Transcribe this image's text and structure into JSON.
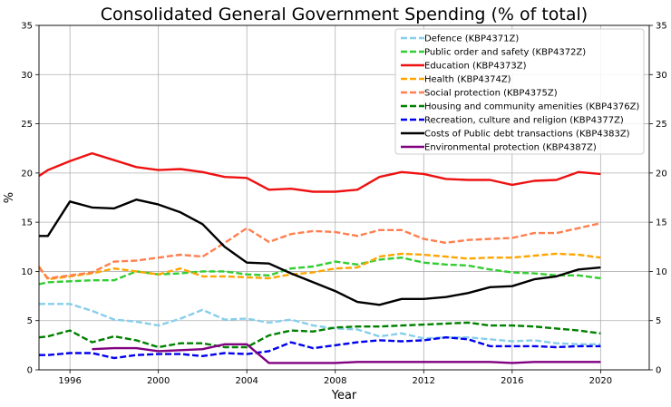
{
  "chart_data": {
    "type": "line",
    "title": "Consolidated General Government Spending (% of total)",
    "xlabel": "Year",
    "ylabel": "%",
    "xlim": [
      1994.6,
      2022.2
    ],
    "ylim": [
      0,
      35
    ],
    "xticks": [
      1996,
      2000,
      2004,
      2008,
      2012,
      2016,
      2020
    ],
    "yticks": [
      0,
      5,
      10,
      15,
      20,
      25,
      30,
      35
    ],
    "grid": true,
    "legend_position": "upper right",
    "series": [
      {
        "name": "Defence (KBP4371Z)",
        "color": "#87ceeb",
        "dash": "dashed",
        "x": [
          1994.6,
          1995,
          1996,
          1997,
          1998,
          1999,
          2000,
          2001,
          2002,
          2003,
          2004,
          2005,
          2006,
          2007,
          2008,
          2009,
          2010,
          2011,
          2012,
          2013,
          2014,
          2015,
          2016,
          2017,
          2018,
          2019,
          2020
        ],
        "y": [
          6.7,
          6.7,
          6.7,
          6.0,
          5.1,
          4.9,
          4.5,
          5.2,
          6.1,
          5.1,
          5.2,
          4.8,
          5.1,
          4.5,
          4.2,
          4.1,
          3.4,
          3.7,
          3.2,
          3.3,
          3.3,
          3.1,
          2.9,
          3.0,
          2.7,
          2.6,
          2.6
        ]
      },
      {
        "name": "Public order and safety (KBP4372Z)",
        "color": "#32cd32",
        "dash": "dashed",
        "x": [
          1994.6,
          1995,
          1996,
          1997,
          1998,
          1999,
          2000,
          2001,
          2002,
          2003,
          2004,
          2005,
          2006,
          2007,
          2008,
          2009,
          2010,
          2011,
          2012,
          2013,
          2014,
          2015,
          2016,
          2017,
          2018,
          2019,
          2020
        ],
        "y": [
          8.7,
          8.9,
          9.0,
          9.1,
          9.1,
          10.0,
          9.7,
          9.8,
          10.0,
          10.0,
          9.7,
          9.6,
          10.3,
          10.5,
          11.0,
          10.7,
          11.2,
          11.4,
          10.9,
          10.7,
          10.6,
          10.2,
          9.9,
          9.8,
          9.6,
          9.6,
          9.3
        ]
      },
      {
        "name": "Education (KBP4373Z)",
        "color": "#ee1111",
        "dash": "solid",
        "x": [
          1994.6,
          1995,
          1996,
          1997,
          1998,
          1999,
          2000,
          2001,
          2002,
          2003,
          2004,
          2005,
          2006,
          2007,
          2008,
          2009,
          2010,
          2011,
          2012,
          2013,
          2014,
          2015,
          2016,
          2017,
          2018,
          2019,
          2020
        ],
        "y": [
          19.7,
          20.3,
          21.2,
          22.0,
          21.3,
          20.6,
          20.3,
          20.4,
          20.1,
          19.6,
          19.5,
          18.3,
          18.4,
          18.1,
          18.1,
          18.3,
          19.6,
          20.1,
          19.9,
          19.4,
          19.3,
          19.3,
          18.8,
          19.2,
          19.3,
          20.1,
          19.9
        ]
      },
      {
        "name": "Health (KBP4374Z)",
        "color": "#ffa500",
        "dash": "dashed",
        "x": [
          1994.6,
          1995,
          1996,
          1997,
          1998,
          1999,
          2000,
          2001,
          2002,
          2003,
          2004,
          2005,
          2006,
          2007,
          2008,
          2009,
          2010,
          2011,
          2012,
          2013,
          2014,
          2015,
          2016,
          2017,
          2018,
          2019,
          2020
        ],
        "y": [
          10.5,
          9.2,
          9.5,
          9.8,
          10.3,
          10.0,
          9.7,
          10.3,
          9.5,
          9.5,
          9.4,
          9.3,
          9.7,
          9.9,
          10.3,
          10.4,
          11.5,
          11.8,
          11.7,
          11.5,
          11.3,
          11.4,
          11.4,
          11.6,
          11.8,
          11.7,
          11.4
        ]
      },
      {
        "name": "Social protection (KBP4375Z)",
        "color": "#ff7f50",
        "dash": "dashed",
        "x": [
          1994.6,
          1995,
          1996,
          1997,
          1998,
          1999,
          2000,
          2001,
          2002,
          2003,
          2004,
          2005,
          2006,
          2007,
          2008,
          2009,
          2010,
          2011,
          2012,
          2013,
          2014,
          2015,
          2016,
          2017,
          2018,
          2019,
          2020
        ],
        "y": [
          10.4,
          9.3,
          9.6,
          9.9,
          11.0,
          11.1,
          11.4,
          11.7,
          11.5,
          12.9,
          14.4,
          13.0,
          13.8,
          14.1,
          14.0,
          13.6,
          14.2,
          14.2,
          13.3,
          12.9,
          13.2,
          13.3,
          13.4,
          13.9,
          13.9,
          14.4,
          14.9
        ]
      },
      {
        "name": "Housing and community amenities (KBP4376Z)",
        "color": "#008000",
        "dash": "dashed",
        "x": [
          1994.6,
          1995,
          1996,
          1997,
          1998,
          1999,
          2000,
          2001,
          2002,
          2003,
          2004,
          2005,
          2006,
          2007,
          2008,
          2009,
          2010,
          2011,
          2012,
          2013,
          2014,
          2015,
          2016,
          2017,
          2018,
          2019,
          2020
        ],
        "y": [
          3.3,
          3.4,
          4.0,
          2.8,
          3.4,
          3.0,
          2.3,
          2.7,
          2.7,
          2.3,
          2.3,
          3.5,
          4.0,
          3.9,
          4.3,
          4.4,
          4.4,
          4.5,
          4.6,
          4.7,
          4.8,
          4.5,
          4.5,
          4.4,
          4.2,
          4.0,
          3.7
        ]
      },
      {
        "name": "Recreation, culture and religion (KBP4377Z)",
        "color": "#0000ee",
        "dash": "dashed",
        "x": [
          1994.6,
          1995,
          1996,
          1997,
          1998,
          1999,
          2000,
          2001,
          2002,
          2003,
          2004,
          2005,
          2006,
          2007,
          2008,
          2009,
          2010,
          2011,
          2012,
          2013,
          2014,
          2015,
          2016,
          2017,
          2018,
          2019,
          2020
        ],
        "y": [
          1.5,
          1.5,
          1.7,
          1.7,
          1.2,
          1.5,
          1.6,
          1.6,
          1.4,
          1.7,
          1.6,
          1.9,
          2.8,
          2.2,
          2.5,
          2.8,
          3.0,
          2.9,
          3.0,
          3.3,
          3.1,
          2.4,
          2.4,
          2.4,
          2.3,
          2.4,
          2.4
        ]
      },
      {
        "name": "Costs of Public debt transactions (KBP4383Z)",
        "color": "#000000",
        "dash": "solid",
        "x": [
          1994.6,
          1995,
          1996,
          1997,
          1998,
          1999,
          2000,
          2001,
          2002,
          2003,
          2004,
          2005,
          2006,
          2007,
          2008,
          2009,
          2010,
          2011,
          2012,
          2013,
          2014,
          2015,
          2016,
          2017,
          2018,
          2019,
          2020
        ],
        "y": [
          13.6,
          13.6,
          17.1,
          16.5,
          16.4,
          17.3,
          16.8,
          16.0,
          14.8,
          12.5,
          10.9,
          10.8,
          9.8,
          8.9,
          8.0,
          6.9,
          6.6,
          7.2,
          7.2,
          7.4,
          7.8,
          8.4,
          8.5,
          9.2,
          9.5,
          10.2,
          10.4
        ]
      },
      {
        "name": "Environmental protection (KBP4387Z)",
        "color": "#800080",
        "dash": "solid",
        "x": [
          1997,
          1998,
          1999,
          2000,
          2001,
          2002,
          2003,
          2004,
          2005,
          2006,
          2007,
          2008,
          2009,
          2010,
          2011,
          2012,
          2013,
          2014,
          2015,
          2016,
          2017,
          2018,
          2019,
          2020
        ],
        "y": [
          2.1,
          2.2,
          2.2,
          1.9,
          2.0,
          2.1,
          2.6,
          2.6,
          0.7,
          0.7,
          0.7,
          0.7,
          0.8,
          0.8,
          0.8,
          0.8,
          0.8,
          0.8,
          0.8,
          0.7,
          0.8,
          0.8,
          0.8,
          0.8
        ]
      }
    ]
  }
}
